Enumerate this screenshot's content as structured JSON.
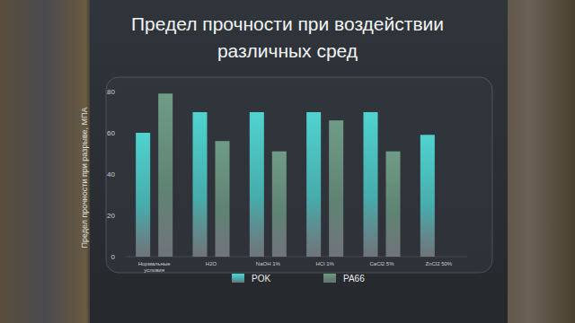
{
  "chart_data": {
    "type": "bar",
    "title": "Предел прочности при воздействии различных сред",
    "y_label": "Предел прочности при разрыве, МПА",
    "categories": [
      "Нормальные условия",
      "H2O",
      "NaOH 1%",
      "HCl 1%",
      "CaCl2 5%",
      "ZnCl2 50%"
    ],
    "series": [
      {
        "name": "POK",
        "color": "#4fd3d0",
        "values": [
          60,
          70,
          70,
          70,
          70,
          59
        ]
      },
      {
        "name": "PA66",
        "color": "#6f9c86",
        "values": [
          79,
          56,
          51,
          66,
          51,
          null
        ]
      }
    ],
    "ylim": [
      0,
      80
    ],
    "yticks": [
      0,
      20,
      40,
      60,
      80
    ],
    "grid": false,
    "legend": "bottom"
  }
}
